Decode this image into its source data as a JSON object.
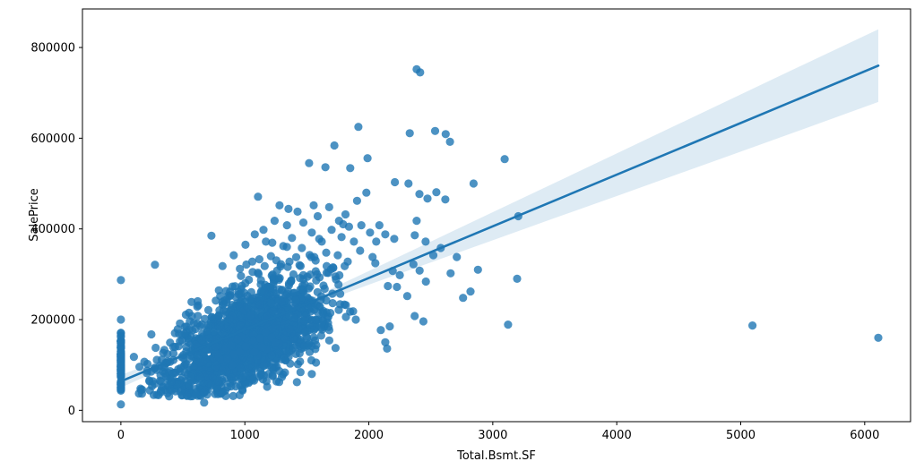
{
  "figure": {
    "background": "#ffffff"
  },
  "chart_data": {
    "type": "scatter",
    "title": "",
    "xlabel": "Total.Bsmt.SF",
    "ylabel": "SalePrice",
    "xlim": [
      -310,
      6370
    ],
    "ylim": [
      -25000,
      885000
    ],
    "x_ticks": [
      0,
      1000,
      2000,
      3000,
      4000,
      5000,
      6000
    ],
    "y_ticks": [
      0,
      200000,
      400000,
      600000,
      800000
    ],
    "grid": false,
    "legend": null,
    "marker": {
      "color": "#1f77b4",
      "alpha": 0.8,
      "radius": 4.6
    },
    "regression_line": {
      "color": "#1f77b4",
      "width": 2.6,
      "x": [
        0,
        6110
      ],
      "y": [
        64000,
        760000
      ]
    },
    "confidence_band": {
      "color": "#1f77b4",
      "alpha": 0.15,
      "points": [
        [
          0,
          50000,
          78000
        ],
        [
          500,
          112000,
          130000
        ],
        [
          1050,
          178500,
          188500
        ],
        [
          1500,
          227000,
          243000
        ],
        [
          2000,
          277000,
          307000
        ],
        [
          2500,
          326000,
          372000
        ],
        [
          3000,
          375000,
          437000
        ],
        [
          3500,
          424000,
          501500
        ],
        [
          4000,
          472500,
          566500
        ],
        [
          4500,
          521500,
          631500
        ],
        [
          5000,
          570500,
          696500
        ],
        [
          5500,
          619500,
          761500
        ],
        [
          6110,
          680000,
          840000
        ]
      ]
    },
    "scatter": {
      "note": "Approximately 2900 overlapping points; dense core summarized by point_cloud_model, distinctive/outlying points listed explicitly.",
      "notable_points": [
        [
          2386,
          752000
        ],
        [
          2414,
          745000
        ],
        [
          1916,
          625000
        ],
        [
          2330,
          611000
        ],
        [
          2535,
          616000
        ],
        [
          2620,
          609000
        ],
        [
          2655,
          592000
        ],
        [
          1722,
          584000
        ],
        [
          1990,
          556000
        ],
        [
          3096,
          554000
        ],
        [
          1518,
          545000
        ],
        [
          1650,
          536000
        ],
        [
          1850,
          534000
        ],
        [
          2210,
          503000
        ],
        [
          2320,
          500000
        ],
        [
          2845,
          500000
        ],
        [
          2408,
          477000
        ],
        [
          2473,
          467000
        ],
        [
          2545,
          481000
        ],
        [
          2617,
          465000
        ],
        [
          1106,
          471000
        ],
        [
          1905,
          462000
        ],
        [
          1980,
          480000
        ],
        [
          2386,
          418000
        ],
        [
          3206,
          428000
        ],
        [
          2371,
          386000
        ],
        [
          2458,
          372000
        ],
        [
          2133,
          388000
        ],
        [
          2205,
          378000
        ],
        [
          730,
          385000
        ],
        [
          275,
          321000
        ],
        [
          1280,
          452000
        ],
        [
          1352,
          444000
        ],
        [
          1425,
          438000
        ],
        [
          1472,
          414000
        ],
        [
          1555,
          452000
        ],
        [
          1588,
          428000
        ],
        [
          1680,
          448000
        ],
        [
          1760,
          418000
        ],
        [
          1812,
          432000
        ],
        [
          1340,
          408000
        ],
        [
          1240,
          418000
        ],
        [
          1150,
          398000
        ],
        [
          820,
          318000
        ],
        [
          910,
          342000
        ],
        [
          1005,
          365000
        ],
        [
          1080,
          388000
        ],
        [
          1170,
          372000
        ],
        [
          1210,
          340000
        ],
        [
          1310,
          362000
        ],
        [
          1380,
          380000
        ],
        [
          1460,
          358000
        ],
        [
          1540,
          392000
        ],
        [
          1620,
          372000
        ],
        [
          1700,
          398000
        ],
        [
          1780,
          382000
        ],
        [
          1840,
          405000
        ],
        [
          1880,
          372000
        ],
        [
          1940,
          408000
        ],
        [
          2010,
          392000
        ],
        [
          2060,
          372000
        ],
        [
          2085,
          408000
        ],
        [
          960,
          312000
        ],
        [
          1060,
          328000
        ],
        [
          1160,
          318000
        ],
        [
          1260,
          308000
        ],
        [
          1360,
          328000
        ],
        [
          1450,
          318000
        ],
        [
          1560,
          338000
        ],
        [
          1660,
          318000
        ],
        [
          1750,
          342000
        ],
        [
          1830,
          328000
        ],
        [
          1930,
          352000
        ],
        [
          2030,
          338000
        ],
        [
          2133,
          150000
        ],
        [
          2169,
          185000
        ],
        [
          2154,
          274000
        ],
        [
          2227,
          272000
        ],
        [
          2147,
          136000
        ],
        [
          2097,
          177000
        ],
        [
          2250,
          298000
        ],
        [
          2310,
          252000
        ],
        [
          2360,
          322000
        ],
        [
          2410,
          308000
        ],
        [
          2460,
          284000
        ],
        [
          2520,
          342000
        ],
        [
          2580,
          358000
        ],
        [
          2660,
          302000
        ],
        [
          2710,
          338000
        ],
        [
          2760,
          248000
        ],
        [
          2370,
          208000
        ],
        [
          2440,
          196000
        ],
        [
          2820,
          262000
        ],
        [
          2880,
          310000
        ],
        [
          3196,
          290000
        ],
        [
          3123,
          189000
        ],
        [
          5095,
          187000
        ],
        [
          6110,
          160000
        ],
        [
          672,
          17000
        ],
        [
          340,
          52000
        ],
        [
          520,
          44000
        ],
        [
          760,
          36000
        ],
        [
          980,
          46000
        ],
        [
          1180,
          52000
        ],
        [
          1420,
          62000
        ],
        [
          1540,
          80000
        ],
        [
          230,
          64000
        ],
        [
          150,
          96000
        ],
        [
          105,
          118000
        ]
      ],
      "zero_column": {
        "x": 0,
        "n": 85,
        "y_min": 40000,
        "y_max": 173000,
        "extra_points": [
          [
            0,
            287000
          ],
          [
            0,
            200000
          ],
          [
            0,
            13000
          ]
        ]
      },
      "point_cloud_model": {
        "seed": 11,
        "n": 1700,
        "x_mean": 1010,
        "x_sd": 330,
        "x_min": 130,
        "x_max": 2260,
        "y_intercept": 42000,
        "y_slope": 106,
        "y_noise_sd": 44000,
        "y_upper_skew": 1.35,
        "y_min": 30000
      }
    }
  }
}
